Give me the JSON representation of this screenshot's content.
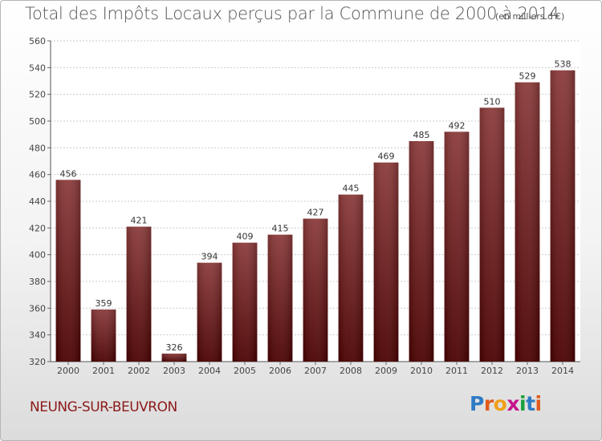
{
  "title": "Total des Impôts Locaux perçus par la Commune de 2000 à 2014",
  "unit_note": "(en milliers d'€)",
  "commune": "NEUNG-SUR-BEUVRON",
  "logo": {
    "text": "Proxiti",
    "letter_colors": [
      "#2e7bc4",
      "#e05a1c",
      "#f0a01a",
      "#c4148b",
      "#1aa03c",
      "#2e7bc4",
      "#e05a1c"
    ]
  },
  "colors": {
    "bar_top": "#8b3a3a",
    "bar_bottom": "#4a0000",
    "grid": "#cccccc",
    "axis_text": "#444444"
  },
  "chart_data": {
    "type": "bar",
    "categories": [
      "2000",
      "2001",
      "2002",
      "2003",
      "2004",
      "2005",
      "2006",
      "2007",
      "2008",
      "2009",
      "2010",
      "2011",
      "2012",
      "2013",
      "2014"
    ],
    "values": [
      456,
      359,
      421,
      326,
      394,
      409,
      415,
      427,
      445,
      469,
      485,
      492,
      510,
      529,
      538
    ],
    "ylim": [
      320,
      560
    ],
    "yticks": [
      320,
      340,
      360,
      380,
      400,
      420,
      440,
      460,
      480,
      500,
      520,
      540,
      560
    ],
    "grid": true,
    "data_labels": true
  }
}
